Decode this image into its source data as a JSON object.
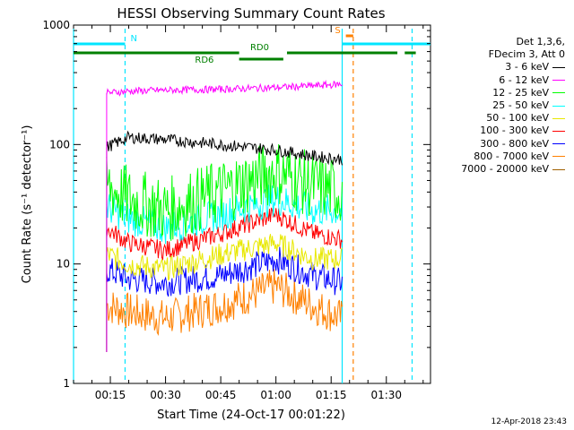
{
  "chart_data": {
    "type": "line",
    "title": "HESSI Observing Summary Count Rates",
    "xlabel": "Start Time (24-Oct-17 00:01:22)",
    "ylabel": "Count Rate (s⁻¹ detector⁻¹)",
    "yscale": "log",
    "ylim": [
      1,
      1000
    ],
    "xlim": [
      "00:05",
      "01:42"
    ],
    "x_ticks": [
      "00:15",
      "00:30",
      "00:45",
      "01:00",
      "01:15",
      "01:30"
    ],
    "y_ticks": [
      "1",
      "10",
      "100",
      "1000"
    ],
    "grid": false,
    "legend_position": "right",
    "legend_header": [
      "Det 1,3,6,",
      "FDecim 3, Att 0"
    ],
    "series": [
      {
        "name": "3 - 6 keV",
        "color": "#000000",
        "x": [
          "00:14",
          "00:20",
          "00:30",
          "00:45",
          "01:00",
          "01:10",
          "01:18"
        ],
        "values": [
          95,
          115,
          110,
          100,
          90,
          80,
          75
        ]
      },
      {
        "name": "6 - 12 keV",
        "color": "#ff00ff",
        "x": [
          "00:14",
          "00:20",
          "00:30",
          "00:45",
          "01:00",
          "01:10",
          "01:18"
        ],
        "values": [
          270,
          280,
          285,
          290,
          300,
          310,
          320
        ]
      },
      {
        "name": "12 - 25 keV",
        "color": "#00ff00",
        "x": [
          "00:14",
          "00:20",
          "00:30",
          "00:45",
          "01:00",
          "01:10",
          "01:18"
        ],
        "values": [
          45,
          35,
          28,
          40,
          60,
          45,
          40
        ]
      },
      {
        "name": "25 - 50 keV",
        "color": "#00ffff",
        "x": [
          "00:14",
          "00:20",
          "00:30",
          "00:45",
          "01:00",
          "01:10",
          "01:18"
        ],
        "values": [
          30,
          24,
          20,
          26,
          35,
          28,
          28
        ]
      },
      {
        "name": "50 - 100 keV",
        "color": "#e8e800",
        "x": [
          "00:14",
          "00:20",
          "00:30",
          "00:45",
          "01:00",
          "01:10",
          "01:18"
        ],
        "values": [
          12,
          10,
          9,
          12,
          15,
          11,
          11
        ]
      },
      {
        "name": "100 - 300 keV",
        "color": "#ff0000",
        "x": [
          "00:14",
          "00:20",
          "00:30",
          "00:45",
          "01:00",
          "01:10",
          "01:18"
        ],
        "values": [
          20,
          15,
          13,
          18,
          26,
          18,
          16
        ]
      },
      {
        "name": "300 - 800 keV",
        "color": "#0000ff",
        "x": [
          "00:14",
          "00:20",
          "00:30",
          "00:45",
          "01:00",
          "01:10",
          "01:18"
        ],
        "values": [
          9,
          7.5,
          7,
          8,
          11,
          8,
          7
        ]
      },
      {
        "name": "800 - 7000 keV",
        "color": "#ff8000",
        "x": [
          "00:14",
          "00:20",
          "00:30",
          "00:45",
          "01:00",
          "01:10",
          "01:18"
        ],
        "values": [
          4.5,
          4,
          3.5,
          4.5,
          6.5,
          4.5,
          3.5
        ]
      },
      {
        "name": "7000 - 20000 keV",
        "color": "#a06000",
        "x": [],
        "values": []
      }
    ],
    "annotations": [
      {
        "label": "N",
        "color": "#00e5ff",
        "segments": [
          [
            "00:05",
            "00:19"
          ],
          [
            "01:18",
            "01:42"
          ]
        ]
      },
      {
        "label": "RD0",
        "color": "#008000",
        "segments": [
          [
            "00:05",
            "00:50"
          ],
          [
            "01:03",
            "01:33"
          ],
          [
            "01:35",
            "01:38"
          ]
        ]
      },
      {
        "label": "RD6",
        "color": "#008000",
        "segments": [
          [
            "00:50",
            "01:02"
          ]
        ]
      },
      {
        "label": "S",
        "color": "#ff8000",
        "segments": [
          [
            "01:19",
            "01:21"
          ]
        ]
      }
    ],
    "vlines": [
      {
        "x": "00:05",
        "color": "#00e5ff",
        "style": "solid"
      },
      {
        "x": "00:19",
        "color": "#00e5ff",
        "style": "dashed"
      },
      {
        "x": "01:18",
        "color": "#00e5ff",
        "style": "solid"
      },
      {
        "x": "01:21",
        "color": "#ff8000",
        "style": "dashed"
      },
      {
        "x": "01:37",
        "color": "#00e5ff",
        "style": "dashed"
      }
    ]
  },
  "footer_date": "12-Apr-2018 23:43"
}
